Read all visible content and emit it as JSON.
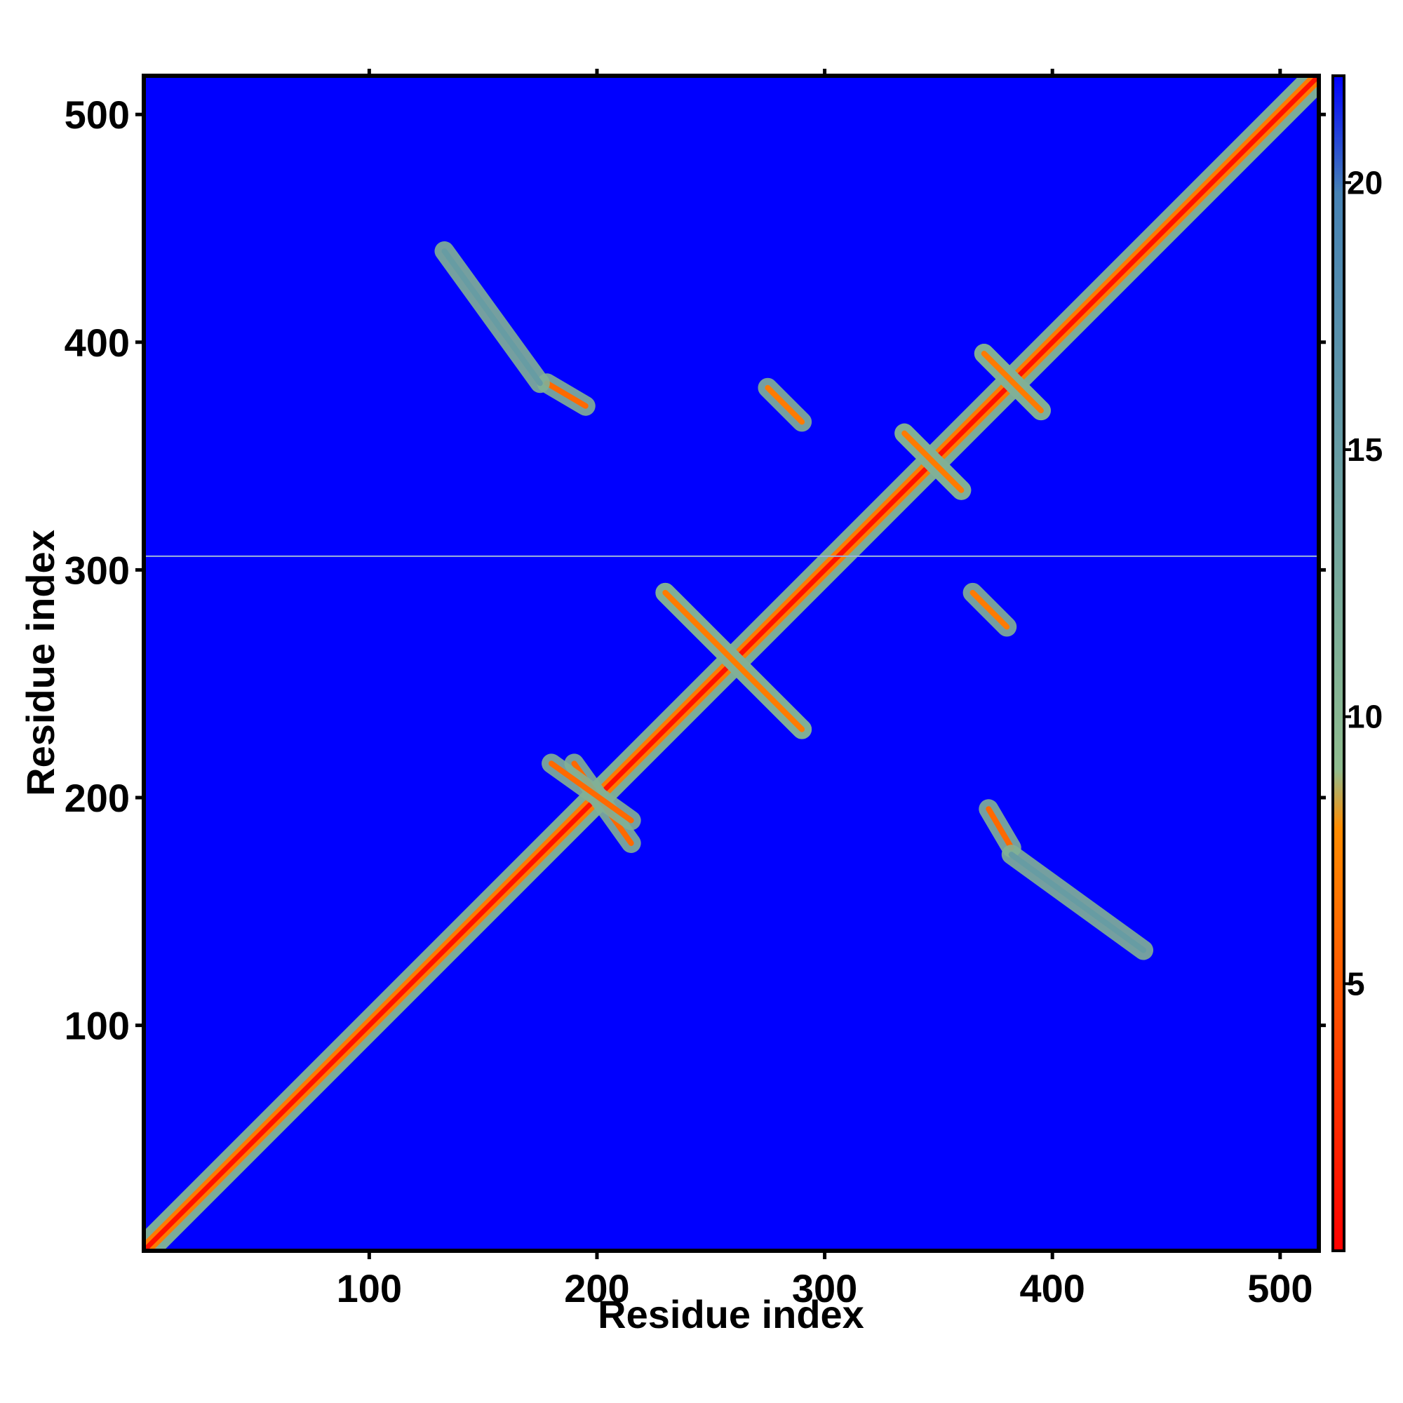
{
  "chart_data": {
    "type": "heatmap",
    "title": "",
    "xlabel": "Residue index",
    "ylabel": "Residue index",
    "xlim": [
      1,
      517
    ],
    "ylim": [
      1,
      517
    ],
    "x_ticks": [
      100,
      200,
      300,
      400,
      500
    ],
    "y_ticks": [
      100,
      200,
      300,
      400,
      500
    ],
    "colorbar": {
      "ticks": [
        5,
        10,
        15,
        20
      ],
      "range": [
        0,
        22
      ],
      "colors": [
        "#ff0000",
        "#ff8c00",
        "#8fbc8f",
        "#4682b4",
        "#0000ff"
      ],
      "stops": [
        0,
        8,
        9,
        20,
        22
      ]
    },
    "background_value": 22,
    "description_of_structure": {
      "diagonal": {
        "start": 1,
        "end": 517,
        "value": 1
      },
      "beta_sheet_contacts": [
        {
          "x_range": [
            178,
            195
          ],
          "y_range": [
            372,
            382
          ],
          "orientation": "anti",
          "value": 6
        },
        {
          "x_range": [
            133,
            175
          ],
          "y_range": [
            382,
            440
          ],
          "orientation": "anti",
          "value": 15
        },
        {
          "x_range": [
            190,
            215
          ],
          "y_range": [
            180,
            215
          ],
          "orientation": "anti",
          "value": 6
        },
        {
          "x_range": [
            230,
            290
          ],
          "y_range": [
            230,
            290
          ],
          "orientation": "anti",
          "value": 7
        },
        {
          "x_range": [
            275,
            290
          ],
          "y_range": [
            365,
            380
          ],
          "orientation": "anti",
          "value": 7
        },
        {
          "x_range": [
            335,
            360
          ],
          "y_range": [
            335,
            360
          ],
          "orientation": "anti",
          "value": 7
        },
        {
          "x_range": [
            370,
            395
          ],
          "y_range": [
            370,
            395
          ],
          "orientation": "anti",
          "value": 7
        }
      ],
      "horizontal_line_at_y": 306
    }
  }
}
